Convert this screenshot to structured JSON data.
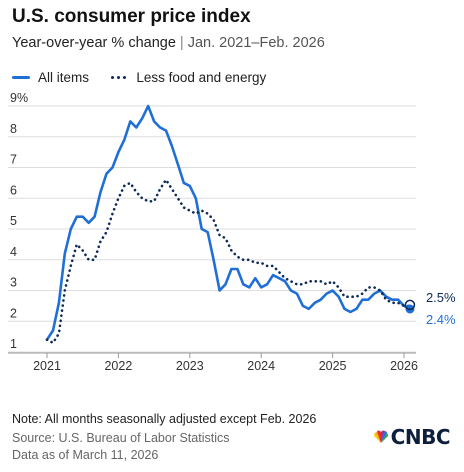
{
  "header": {
    "title": "U.S. consumer price index",
    "subtitle_main": "Year-over-year % change",
    "subtitle_sep": "|",
    "subtitle_range": "Jan. 2021–Feb. 2026"
  },
  "legend": {
    "all_items": "All items",
    "core": "Less food and energy"
  },
  "footer": {
    "note": "Note: All months seasonally adjusted except Feb. 2026",
    "source": "Source: U.S. Bureau of Labor Statistics",
    "as_of": "Data as of March 11, 2026",
    "logo": "CNBC"
  },
  "chart_data": {
    "type": "line",
    "ylim": [
      1,
      9
    ],
    "yticks": [
      1,
      2,
      3,
      4,
      5,
      6,
      7,
      8,
      9
    ],
    "ytick_labels": [
      "1",
      "2",
      "3",
      "4",
      "5",
      "6",
      "7",
      "8",
      "9%"
    ],
    "xticks": [
      "2021",
      "2022",
      "2023",
      "2024",
      "2025",
      "2026"
    ],
    "grid": true,
    "legend_position": "top-left",
    "colors": {
      "all_items": "#1f6fd6",
      "core": "#0d2b57"
    },
    "series": [
      {
        "name": "All items",
        "style": "solid",
        "end_label": "2.4%",
        "points": [
          [
            "2021-01",
            1.4
          ],
          [
            "2021-02",
            1.7
          ],
          [
            "2021-03",
            2.6
          ],
          [
            "2021-04",
            4.2
          ],
          [
            "2021-05",
            5.0
          ],
          [
            "2021-06",
            5.4
          ],
          [
            "2021-07",
            5.4
          ],
          [
            "2021-08",
            5.2
          ],
          [
            "2021-09",
            5.4
          ],
          [
            "2021-10",
            6.2
          ],
          [
            "2021-11",
            6.8
          ],
          [
            "2021-12",
            7.0
          ],
          [
            "2022-01",
            7.5
          ],
          [
            "2022-02",
            7.9
          ],
          [
            "2022-03",
            8.5
          ],
          [
            "2022-04",
            8.3
          ],
          [
            "2022-05",
            8.6
          ],
          [
            "2022-06",
            9.0
          ],
          [
            "2022-07",
            8.5
          ],
          [
            "2022-08",
            8.3
          ],
          [
            "2022-09",
            8.2
          ],
          [
            "2022-10",
            7.7
          ],
          [
            "2022-11",
            7.1
          ],
          [
            "2022-12",
            6.5
          ],
          [
            "2023-01",
            6.4
          ],
          [
            "2023-02",
            6.0
          ],
          [
            "2023-03",
            5.0
          ],
          [
            "2023-04",
            4.9
          ],
          [
            "2023-05",
            4.0
          ],
          [
            "2023-06",
            3.0
          ],
          [
            "2023-07",
            3.2
          ],
          [
            "2023-08",
            3.7
          ],
          [
            "2023-09",
            3.7
          ],
          [
            "2023-10",
            3.2
          ],
          [
            "2023-11",
            3.1
          ],
          [
            "2023-12",
            3.4
          ],
          [
            "2024-01",
            3.1
          ],
          [
            "2024-02",
            3.2
          ],
          [
            "2024-03",
            3.5
          ],
          [
            "2024-04",
            3.4
          ],
          [
            "2024-05",
            3.3
          ],
          [
            "2024-06",
            3.0
          ],
          [
            "2024-07",
            2.9
          ],
          [
            "2024-08",
            2.5
          ],
          [
            "2024-09",
            2.4
          ],
          [
            "2024-10",
            2.6
          ],
          [
            "2024-11",
            2.7
          ],
          [
            "2024-12",
            2.9
          ],
          [
            "2025-01",
            3.0
          ],
          [
            "2025-02",
            2.8
          ],
          [
            "2025-03",
            2.4
          ],
          [
            "2025-04",
            2.3
          ],
          [
            "2025-05",
            2.4
          ],
          [
            "2025-06",
            2.7
          ],
          [
            "2025-07",
            2.7
          ],
          [
            "2025-08",
            2.9
          ],
          [
            "2025-09",
            3.0
          ],
          [
            "2025-10",
            2.8
          ],
          [
            "2025-11",
            2.7
          ],
          [
            "2025-12",
            2.7
          ],
          [
            "2026-01",
            2.5
          ],
          [
            "2026-02",
            2.4
          ]
        ]
      },
      {
        "name": "Less food and energy",
        "style": "dotted",
        "end_label": "2.5%",
        "points": [
          [
            "2021-01",
            1.4
          ],
          [
            "2021-02",
            1.3
          ],
          [
            "2021-03",
            1.6
          ],
          [
            "2021-04",
            3.0
          ],
          [
            "2021-05",
            3.8
          ],
          [
            "2021-06",
            4.5
          ],
          [
            "2021-07",
            4.3
          ],
          [
            "2021-08",
            4.0
          ],
          [
            "2021-09",
            4.0
          ],
          [
            "2021-10",
            4.6
          ],
          [
            "2021-11",
            4.9
          ],
          [
            "2021-12",
            5.5
          ],
          [
            "2022-01",
            6.0
          ],
          [
            "2022-02",
            6.4
          ],
          [
            "2022-03",
            6.5
          ],
          [
            "2022-04",
            6.2
          ],
          [
            "2022-05",
            6.0
          ],
          [
            "2022-06",
            5.9
          ],
          [
            "2022-07",
            5.9
          ],
          [
            "2022-08",
            6.3
          ],
          [
            "2022-09",
            6.6
          ],
          [
            "2022-10",
            6.3
          ],
          [
            "2022-11",
            6.0
          ],
          [
            "2022-12",
            5.7
          ],
          [
            "2023-01",
            5.6
          ],
          [
            "2023-02",
            5.5
          ],
          [
            "2023-03",
            5.6
          ],
          [
            "2023-04",
            5.5
          ],
          [
            "2023-05",
            5.3
          ],
          [
            "2023-06",
            4.8
          ],
          [
            "2023-07",
            4.7
          ],
          [
            "2023-08",
            4.3
          ],
          [
            "2023-09",
            4.1
          ],
          [
            "2023-10",
            4.0
          ],
          [
            "2023-11",
            4.0
          ],
          [
            "2023-12",
            3.9
          ],
          [
            "2024-01",
            3.9
          ],
          [
            "2024-02",
            3.8
          ],
          [
            "2024-03",
            3.8
          ],
          [
            "2024-04",
            3.6
          ],
          [
            "2024-05",
            3.4
          ],
          [
            "2024-06",
            3.3
          ],
          [
            "2024-07",
            3.2
          ],
          [
            "2024-08",
            3.2
          ],
          [
            "2024-09",
            3.3
          ],
          [
            "2024-10",
            3.3
          ],
          [
            "2024-11",
            3.3
          ],
          [
            "2024-12",
            3.2
          ],
          [
            "2025-01",
            3.3
          ],
          [
            "2025-02",
            3.1
          ],
          [
            "2025-03",
            2.8
          ],
          [
            "2025-04",
            2.8
          ],
          [
            "2025-05",
            2.8
          ],
          [
            "2025-06",
            2.9
          ],
          [
            "2025-07",
            3.1
          ],
          [
            "2025-08",
            3.1
          ],
          [
            "2025-09",
            3.0
          ],
          [
            "2025-10",
            2.7
          ],
          [
            "2025-11",
            2.6
          ],
          [
            "2025-12",
            2.6
          ],
          [
            "2026-01",
            2.5
          ],
          [
            "2026-02",
            2.5
          ]
        ]
      }
    ]
  }
}
